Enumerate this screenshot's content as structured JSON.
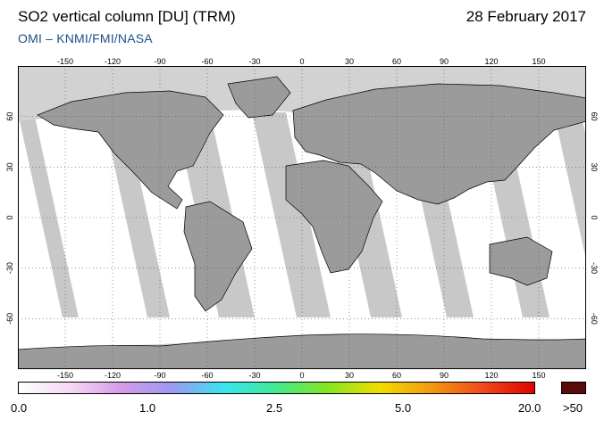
{
  "header": {
    "title": "SO2 vertical column [DU] (TRM)",
    "date": "28 February 2017",
    "credit": "OMI  –  KNMI/FMI/NASA"
  },
  "map": {
    "lon_ticks": [
      "-150",
      "-120",
      "-90",
      "-60",
      "-30",
      "0",
      "30",
      "60",
      "90",
      "120",
      "150"
    ],
    "lat_ticks": [
      "60",
      "30",
      "0",
      "-30",
      "-60"
    ],
    "colors": {
      "background": "#ffffff",
      "no_data": "#d2d2d2",
      "land": "#9b9b9b",
      "gap_swath": "#c8c8c8",
      "coast": "#000000",
      "grid": "#555555"
    }
  },
  "colorbar": {
    "labels": [
      "0.0",
      "1.0",
      "2.5",
      "5.0",
      "20.0",
      ">50"
    ],
    "gradient": [
      "#ffffff",
      "#f3d8f3",
      "#d59be8",
      "#9a9af0",
      "#37e6f0",
      "#44e890",
      "#86e61e",
      "#f2dc00",
      "#f29a10",
      "#f04a1c",
      "#e00000"
    ],
    "overflow_color": "#5c0a0a"
  }
}
